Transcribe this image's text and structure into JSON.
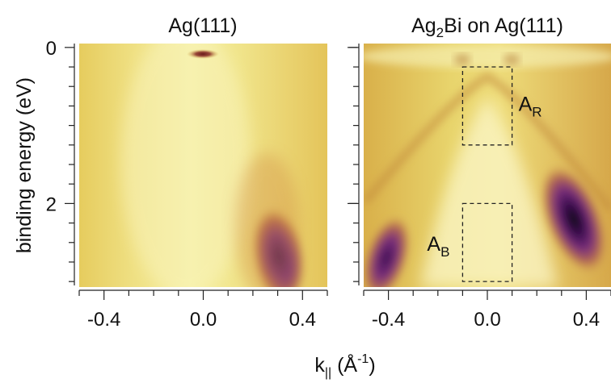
{
  "chart_data": {
    "type": "heatmap",
    "ylabel": "binding energy (eV)",
    "xlabel": {
      "main": "k",
      "sub": "||",
      "unit_open": " (Å",
      "unit_sup": "-1",
      "unit_close": ")"
    },
    "shared_y_axis": {
      "range": [
        -0.05,
        3.05
      ],
      "inverted": true,
      "major_ticks": [
        0,
        2
      ],
      "minor_step": 0.25
    },
    "colormap": [
      "#fdfbe0",
      "#f6ef9a",
      "#e8d05a",
      "#cf9a3e",
      "#a85a5c",
      "#7a2e7c",
      "#3a0d4e",
      "#080808"
    ],
    "panels": [
      {
        "id": "left",
        "title": "Ag(111)",
        "x_range": [
          -0.5,
          0.5
        ],
        "x_ticks": [
          -0.4,
          0.0,
          0.4
        ],
        "x_tick_labels": [
          "-0.4",
          "0.0",
          "0.4"
        ],
        "features": [
          {
            "kind": "surface state pocket",
            "k": 0.0,
            "E": 0.0,
            "intensity": 0.85
          },
          {
            "kind": "bulk band lobe",
            "k": 0.34,
            "E": 2.8,
            "intensity": 0.75
          }
        ]
      },
      {
        "id": "right",
        "title": {
          "pre": "Ag",
          "sub": "2",
          "post": "Bi on Ag(111)"
        },
        "x_range": [
          -0.5,
          0.5
        ],
        "x_ticks": [
          -0.4,
          0.0,
          0.4
        ],
        "x_tick_labels": [
          "-0.4",
          "0.0",
          "0.4"
        ],
        "features": [
          {
            "kind": "lobe",
            "k": 0.33,
            "E": 2.5,
            "intensity": 1.0
          },
          {
            "kind": "lobe",
            "k": -0.4,
            "E": 2.9,
            "intensity": 0.75
          },
          {
            "kind": "band crossing",
            "k": 0.0,
            "E": 0.5,
            "intensity": 0.4
          }
        ],
        "regions": [
          {
            "label": "A",
            "sub": "R",
            "k_range": [
              -0.1,
              0.1
            ],
            "E_range": [
              0.25,
              1.25
            ]
          },
          {
            "label": "A",
            "sub": "B",
            "k_range": [
              -0.1,
              0.1
            ],
            "E_range": [
              2.0,
              3.0
            ]
          }
        ]
      }
    ]
  }
}
